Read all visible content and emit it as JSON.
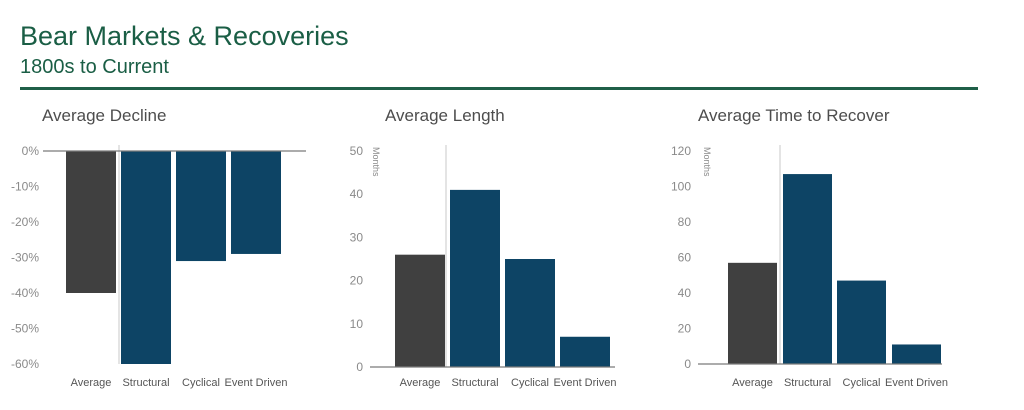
{
  "header": {
    "title": "Bear Markets & Recoveries",
    "subtitle": "1800s to Current"
  },
  "colors": {
    "brand_green": "#1a5e45",
    "average_bar": "#404040",
    "category_bar": "#0d4465"
  },
  "chart_data": [
    {
      "type": "bar",
      "title": "Average Decline",
      "ylabel": "",
      "categories": [
        "Average",
        "Structural",
        "Cyclical",
        "Event Driven"
      ],
      "values": [
        -40,
        -60,
        -31,
        -29
      ],
      "ylim": [
        -60,
        0
      ],
      "yticks": [
        0,
        -10,
        -20,
        -30,
        -40,
        -50,
        -60
      ],
      "ytick_labels": [
        "0%",
        "-10%",
        "-20%",
        "-30%",
        "-40%",
        "-50%",
        "-60%"
      ],
      "grid": false
    },
    {
      "type": "bar",
      "title": "Average Length",
      "ylabel": "Months",
      "categories": [
        "Average",
        "Structural",
        "Cyclical",
        "Event Driven"
      ],
      "values": [
        26,
        41,
        25,
        7
      ],
      "ylim": [
        0,
        50
      ],
      "yticks": [
        0,
        10,
        20,
        30,
        40,
        50
      ],
      "ytick_labels": [
        "0",
        "10",
        "20",
        "30",
        "40",
        "50"
      ],
      "grid": false
    },
    {
      "type": "bar",
      "title": "Average Time to Recover",
      "ylabel": "Months",
      "categories": [
        "Average",
        "Structural",
        "Cyclical",
        "Event Driven"
      ],
      "values": [
        57,
        107,
        47,
        11
      ],
      "ylim": [
        0,
        120
      ],
      "yticks": [
        0,
        20,
        40,
        60,
        80,
        100,
        120
      ],
      "ytick_labels": [
        "0",
        "20",
        "40",
        "60",
        "80",
        "100",
        "120"
      ],
      "grid": false
    }
  ]
}
